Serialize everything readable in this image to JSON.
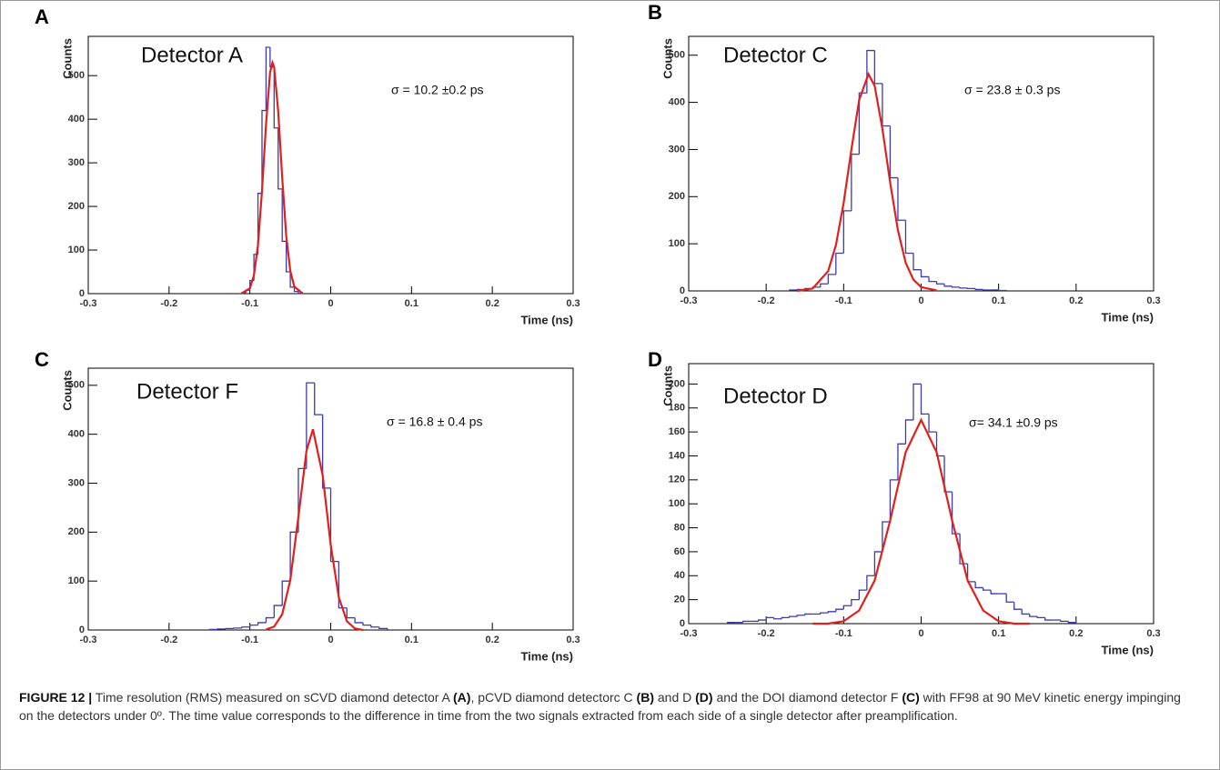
{
  "chart_data": [
    {
      "type": "histogram",
      "panel": "A",
      "title": "Detector A",
      "annotation": "σ = 10.2 ±0.2 ps",
      "xlabel": "Time (ns)",
      "ylabel": "Counts",
      "color": "#3b3bb0",
      "bins": [
        -0.11,
        -0.105,
        -0.1,
        -0.095,
        -0.09,
        -0.085,
        -0.08,
        -0.075,
        -0.07,
        -0.065,
        -0.06,
        -0.055,
        -0.05,
        -0.045,
        -0.04,
        -0.035
      ],
      "values": [
        2,
        8,
        30,
        90,
        230,
        420,
        565,
        520,
        380,
        240,
        120,
        50,
        15,
        5,
        1
      ],
      "fit": {
        "color": "#e0201c",
        "x": [
          -0.11,
          -0.1,
          -0.095,
          -0.09,
          -0.085,
          -0.08,
          -0.075,
          -0.072,
          -0.07,
          -0.065,
          -0.06,
          -0.055,
          -0.05,
          -0.045,
          -0.035
        ],
        "values": [
          1,
          12,
          42,
          111,
          236,
          389,
          508,
          530,
          520,
          419,
          266,
          132,
          52,
          16,
          1
        ]
      },
      "xlim": [
        -0.3,
        0.3
      ],
      "xticks": [
        -0.3,
        -0.2,
        -0.1,
        0,
        0.1,
        0.2,
        0.3
      ],
      "ylim": [
        0,
        590
      ],
      "yticks": [
        0,
        100,
        200,
        300,
        400,
        500
      ]
    },
    {
      "type": "histogram",
      "panel": "B",
      "title": "Detector C",
      "annotation": "σ = 23.8 ± 0.3 ps",
      "xlabel": "Time (ns)",
      "ylabel": "Counts",
      "color": "#3b3bb0",
      "bins": [
        -0.17,
        -0.16,
        -0.15,
        -0.14,
        -0.13,
        -0.12,
        -0.11,
        -0.1,
        -0.09,
        -0.08,
        -0.07,
        -0.06,
        -0.05,
        -0.04,
        -0.03,
        -0.02,
        -0.01,
        0,
        0.01,
        0.02,
        0.03,
        0.04,
        0.05,
        0.06,
        0.07,
        0.08,
        0.09,
        0.1,
        0.11
      ],
      "values": [
        2,
        3,
        5,
        8,
        15,
        35,
        80,
        170,
        290,
        420,
        510,
        440,
        350,
        240,
        150,
        80,
        45,
        30,
        20,
        15,
        10,
        8,
        6,
        5,
        3,
        2,
        2,
        1
      ],
      "fit": {
        "color": "#e0201c",
        "x": [
          -0.16,
          -0.14,
          -0.12,
          -0.11,
          -0.1,
          -0.09,
          -0.08,
          -0.068,
          -0.06,
          -0.05,
          -0.04,
          -0.03,
          -0.02,
          -0.01,
          0,
          0.02
        ],
        "values": [
          0,
          5,
          42,
          97,
          187,
          300,
          405,
          460,
          435,
          344,
          230,
          129,
          60,
          24,
          8,
          1
        ]
      },
      "xlim": [
        -0.3,
        0.3
      ],
      "xticks": [
        -0.3,
        -0.2,
        -0.1,
        0,
        0.1,
        0.2,
        0.3
      ],
      "ylim": [
        0,
        540
      ],
      "yticks": [
        0,
        100,
        200,
        300,
        400,
        500
      ]
    },
    {
      "type": "histogram",
      "panel": "C",
      "title": "Detector F",
      "annotation": "σ = 16.8 ± 0.4 ps",
      "xlabel": "Time (ns)",
      "ylabel": "Counts",
      "color": "#3b3bb0",
      "bins": [
        -0.15,
        -0.14,
        -0.13,
        -0.12,
        -0.11,
        -0.1,
        -0.09,
        -0.08,
        -0.07,
        -0.06,
        -0.05,
        -0.04,
        -0.03,
        -0.02,
        -0.01,
        0,
        0.01,
        0.02,
        0.03,
        0.04,
        0.05,
        0.06,
        0.07
      ],
      "values": [
        1,
        2,
        3,
        4,
        6,
        10,
        15,
        25,
        50,
        100,
        200,
        330,
        505,
        440,
        290,
        140,
        45,
        25,
        15,
        10,
        6,
        3
      ],
      "fit": {
        "color": "#e0201c",
        "x": [
          -0.08,
          -0.07,
          -0.06,
          -0.05,
          -0.04,
          -0.03,
          -0.022,
          -0.01,
          0,
          0.01,
          0.02,
          0.03,
          0.04
        ],
        "values": [
          1,
          7,
          32,
          102,
          231,
          366,
          410,
          317,
          174,
          67,
          18,
          3,
          0
        ]
      },
      "xlim": [
        -0.3,
        0.3
      ],
      "xticks": [
        -0.3,
        -0.2,
        -0.1,
        0,
        0.1,
        0.2,
        0.3
      ],
      "ylim": [
        0,
        535
      ],
      "yticks": [
        0,
        100,
        200,
        300,
        400,
        500
      ]
    },
    {
      "type": "histogram",
      "panel": "D",
      "title": "Detector D",
      "annotation": "σ= 34.1 ±0.9 ps",
      "xlabel": "Time (ns)",
      "ylabel": "Counts",
      "color": "#3b3bb0",
      "bins": [
        -0.25,
        -0.24,
        -0.23,
        -0.22,
        -0.21,
        -0.2,
        -0.19,
        -0.18,
        -0.17,
        -0.16,
        -0.15,
        -0.14,
        -0.13,
        -0.12,
        -0.11,
        -0.1,
        -0.09,
        -0.08,
        -0.07,
        -0.06,
        -0.05,
        -0.04,
        -0.03,
        -0.02,
        -0.01,
        0,
        0.01,
        0.02,
        0.03,
        0.04,
        0.05,
        0.06,
        0.07,
        0.08,
        0.09,
        0.1,
        0.11,
        0.12,
        0.13,
        0.14,
        0.15,
        0.16,
        0.17,
        0.18,
        0.19,
        0.2
      ],
      "values": [
        1,
        1,
        2,
        2,
        3,
        5,
        4,
        5,
        6,
        7,
        8,
        8,
        9,
        10,
        12,
        15,
        20,
        28,
        40,
        60,
        85,
        120,
        150,
        170,
        200,
        175,
        160,
        140,
        110,
        75,
        50,
        35,
        30,
        28,
        25,
        25,
        18,
        12,
        8,
        6,
        5,
        3,
        3,
        2,
        1
      ],
      "fit": {
        "color": "#e0201c",
        "x": [
          -0.14,
          -0.12,
          -0.1,
          -0.08,
          -0.06,
          -0.04,
          -0.02,
          0,
          0.02,
          0.04,
          0.06,
          0.08,
          0.1,
          0.12,
          0.14
        ],
        "values": [
          0,
          0,
          2,
          11,
          36,
          86,
          143,
          170,
          143,
          86,
          36,
          11,
          2,
          0,
          0
        ]
      },
      "xlim": [
        -0.3,
        0.3
      ],
      "xticks": [
        -0.3,
        -0.2,
        -0.1,
        0,
        0.1,
        0.2,
        0.3
      ],
      "ylim": [
        0,
        217
      ],
      "yticks": [
        0,
        20,
        40,
        60,
        80,
        100,
        120,
        140,
        160,
        180,
        200
      ]
    }
  ],
  "caption": {
    "parts": [
      "FIGURE 12 |",
      " Time resolution (RMS) measured on sCVD diamond detector A ",
      "(A)",
      ", pCVD diamond detectorc C ",
      "(B)",
      " and D ",
      "(D)",
      " and the DOI diamond detector F ",
      "(C)",
      " with FF98 at 90 MeV kinetic energy impinging on the detectors under 0º. The time value corresponds to the difference in time from the two signals extracted from each side of a single detector after preamplification."
    ]
  }
}
